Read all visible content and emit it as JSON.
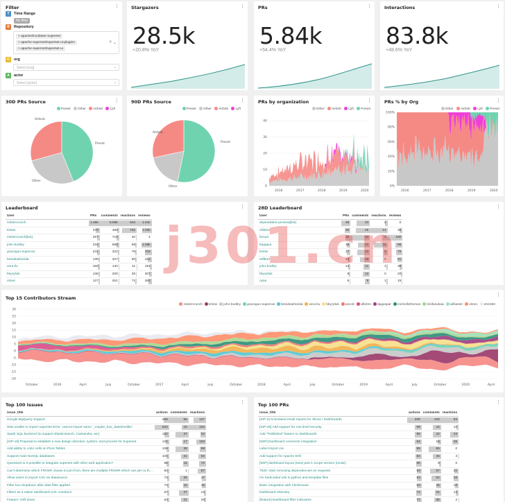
{
  "filter": {
    "title": "Filter",
    "items": [
      {
        "label": "Time Range",
        "badge_color": "#4a90c8",
        "value": "No filter"
      },
      {
        "label": "Repository",
        "badge_color": "#e4793b",
        "chips": [
          "apache/incubator-superset",
          "apache-superset/superset-ui-plugins",
          "apache-superset/superset-ui"
        ]
      },
      {
        "label": "org",
        "badge_color": "#e8b830",
        "placeholder": "Select [org]"
      },
      {
        "label": "actor",
        "badge_color": "#5fb85f",
        "placeholder": "Select [actor]"
      }
    ]
  },
  "kpis": [
    {
      "title": "Stargazers",
      "value": "28.5k",
      "yoy": "+20.8% YoY"
    },
    {
      "title": "PRs",
      "value": "5.84k",
      "yoy": "+54.4% YoY"
    },
    {
      "title": "Interactions",
      "value": "83.8k",
      "yoy": "+48.6% YoY"
    }
  ],
  "colors": {
    "preset": "#6fd3b0",
    "other": "#c8c8c8",
    "airbnb": "#f58a85",
    "lyft": "#ee3fd6",
    "accent": "#2a8f87",
    "spark": "#2a8f87"
  },
  "pie30": {
    "title": "30D PRs Source",
    "legend": [
      "Preset",
      "Other",
      "Airbnb",
      "Lyft"
    ],
    "labels": [
      "Airbnb",
      "Preset",
      "Other"
    ]
  },
  "pie90": {
    "title": "90D PRs Source",
    "legend": [
      "Preset",
      "Other",
      "Airbnb",
      "Lyft"
    ],
    "labels": [
      "Airbnb",
      "Preset",
      "Other"
    ]
  },
  "prs_by_org": {
    "title": "PRs by organization",
    "legend": [
      "Other",
      "Airbnb",
      "Lyft",
      "Preset"
    ],
    "yticks": [
      "40",
      "30",
      "20",
      "10",
      "0"
    ],
    "xticks": [
      "2016",
      "2017",
      "2018",
      "2019",
      "2020"
    ]
  },
  "prs_pct_by_org": {
    "title": "PRs % by Org",
    "legend": [
      "Other",
      "Airbnb",
      "Lyft",
      "Preset"
    ],
    "yticks": [
      "100%",
      "80%",
      "60%",
      "40%",
      "20%",
      "0%"
    ],
    "xticks": [
      "2016",
      "2017",
      "2018",
      "2019",
      "2020"
    ]
  },
  "leaderboard": {
    "title": "Leaderboard",
    "columns": [
      "User",
      "PRs",
      "comments",
      "reactions",
      "reviews"
    ],
    "rows": [
      [
        "mistercrunch",
        "1.05k",
        "5.85k",
        "843",
        "1.61k"
      ],
      [
        "kristw",
        "379",
        "489",
        "702",
        "1.02k"
      ],
      [
        "mistercrunch[bot]",
        "257",
        "718",
        "40",
        "4"
      ],
      [
        "john-bodley",
        "234",
        "698",
        "69",
        "1.08k"
      ],
      [
        "graceguo-supercat",
        "241",
        "322",
        "76",
        "703"
      ],
      [
        "betodealmeida",
        "138",
        "327",
        "60",
        "423"
      ],
      [
        "vera-liu",
        "160",
        "140",
        "11",
        "191"
      ],
      [
        "bkyryliuk",
        "136",
        "209",
        "28",
        "307"
      ],
      [
        "xtinec",
        "127",
        "261",
        "71",
        "363"
      ]
    ],
    "maxes": [
      1050,
      5850,
      843,
      1610
    ]
  },
  "leaderboard28": {
    "title": "28D Leaderboard",
    "columns": [
      "User",
      "PRs",
      "comments",
      "reactions",
      "reviews"
    ],
    "rows": [
      [
        "dependabot-preview[bot]",
        "46",
        "23",
        "2",
        "0"
      ],
      [
        "villebro",
        "30",
        "25",
        "14",
        "36"
      ],
      [
        "ktmud",
        "26",
        "34",
        "4",
        "180"
      ],
      [
        "ttagaput",
        "18",
        "21",
        "11",
        "89"
      ],
      [
        "kristw",
        "17",
        "22",
        "3",
        "75"
      ],
      [
        "willbarr",
        "14",
        "18",
        "0",
        "61"
      ],
      [
        "john-bodley",
        "12",
        "11",
        "1",
        "38"
      ],
      [
        "bkyryliuk",
        "8",
        "12",
        "0",
        "20"
      ],
      [
        "nytai",
        "5",
        "9",
        "1",
        "15"
      ]
    ],
    "maxes": [
      46,
      34,
      14,
      180
    ]
  },
  "stream": {
    "title": "Top 15 Contributors Stream",
    "legend": [
      {
        "name": "mistercrunch",
        "color": "#f58a85"
      },
      {
        "name": "kristw",
        "color": "#9b3b6b"
      },
      {
        "name": "john-bodley",
        "color": "#c8c8c8"
      },
      {
        "name": "graceguo-supercat",
        "color": "#6fd3b0"
      },
      {
        "name": "betodealmeida",
        "color": "#55c7d3"
      },
      {
        "name": "vera-liu",
        "color": "#f2b04c"
      },
      {
        "name": "bkyryliuk",
        "color": "#f5e08a"
      },
      {
        "name": "ascott",
        "color": "#ee7a6a"
      },
      {
        "name": "villebro",
        "color": "#d94f8a"
      },
      {
        "name": "dpgaspar",
        "color": "#a04080"
      },
      {
        "name": "michellethomas",
        "color": "#2f8f7a"
      },
      {
        "name": "timifasubaa",
        "color": "#a8d68f"
      },
      {
        "name": "williaster",
        "color": "#9fe0b8"
      },
      {
        "name": "xtinec",
        "color": "#ff8f6a"
      },
      {
        "name": "etr2460",
        "color": "#e8e8f0"
      }
    ],
    "yticks": [
      "30",
      "25",
      "20",
      "15",
      "10",
      "5",
      "0",
      "-5",
      "-10",
      "-15",
      "-20"
    ],
    "xticks": [
      "October",
      "2016",
      "April",
      "July",
      "October",
      "2017",
      "April",
      "July",
      "October",
      "2018",
      "April",
      "July",
      "October",
      "2019",
      "April",
      "July",
      "October",
      "2020",
      "April"
    ]
  },
  "issues": {
    "title": "Top 100 Issues",
    "columns": [
      "issue_title",
      "actions",
      "comments",
      "reactions"
    ],
    "rows": [
      [
        "Google BigQuery Support",
        "208",
        "56",
        "127"
      ],
      [
        "Was unable to import superset Error: cannot import name '_maybe_box_datetimelike'",
        "533",
        "19",
        "182"
      ],
      [
        "Spark SQL backend (to support Elasticsearch, Cassandra, etc)",
        "162",
        "37",
        "62"
      ],
      [
        "[SIP-15] Proposal to establish a new design direction, system, and process for Superset",
        "120",
        "17",
        "100"
      ],
      [
        "Add ability to color cells on Pivot Tables",
        "106",
        "38",
        "68"
      ],
      [
        "Support main NoSQL databases",
        "104",
        "21",
        "82"
      ],
      [
        "Questions is it possible to integrate superset with other web application?",
        "86",
        "15",
        "72"
      ],
      [
        "Can't determine which FROM# clause to join from, there are multiple FROM# which can join to this entity",
        "84",
        "1",
        "87"
      ],
      [
        "Allow users to import CSV as datasource",
        "74",
        "25",
        "47"
      ],
      [
        "Filter box dropdown after date filter applied",
        "74",
        "15",
        "46"
      ],
      [
        "Filters as a native dashboard UJC construct",
        "67",
        "27",
        "22"
      ],
      [
        "Feature: Drill down",
        "63",
        "21",
        "20"
      ]
    ],
    "maxes": [
      533,
      56,
      182
    ]
  },
  "prs": {
    "title": "Top 100 PRs",
    "columns": [
      "issue_title",
      "actions",
      "comments",
      "reactions"
    ],
    "rows": [
      [
        "[SIP-3] Scheduled email reports for Slices / Dashboards",
        "205",
        "103",
        "93"
      ],
      [
        "[SIP-29] Add support for row-level security",
        "99",
        "44",
        "10"
      ],
      [
        "Add \"Published\" feature to dashboards",
        "96",
        "42",
        "43"
      ],
      [
        "[WIP] Dashboard connector integration",
        "94",
        "18",
        "35"
      ],
      [
        "Label Import csv",
        "85",
        "65",
        "0"
      ],
      [
        "Add support for Apache Drill",
        "84",
        "45",
        "4"
      ],
      [
        "[WIP] dashboard layout (new) part-1 scope-version (mode)",
        "80",
        "9",
        "0"
      ],
      [
        "7620: Start removing dependencies on requests",
        "63",
        "57",
        "21"
      ],
      [
        "Fix hardcoded urls in python and template files",
        "63",
        "52",
        "28"
      ],
      [
        "Basic integration with ClickHouse",
        "63",
        "25",
        "18"
      ],
      [
        "Dashboard refactory",
        "74",
        "31",
        "14"
      ],
      [
        "[feature] Dashboard filter indicators",
        "71",
        "35",
        "2"
      ]
    ],
    "maxes": [
      205,
      103,
      93
    ]
  },
  "watermark": "j301.cn"
}
